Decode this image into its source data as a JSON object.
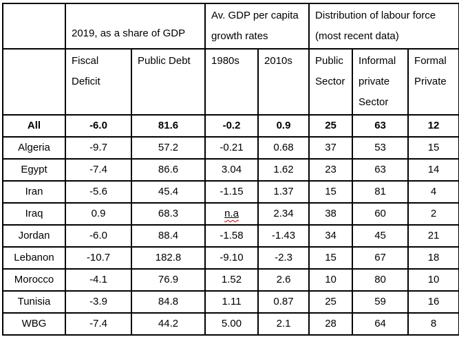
{
  "colors": {
    "background": "#ffffff",
    "border": "#000000",
    "text": "#000000",
    "squiggle": "#cc0000"
  },
  "table": {
    "corner_label": "",
    "col_groups": [
      {
        "label": "2019, as a share of GDP",
        "span": 2
      },
      {
        "label": "Av. GDP per capita\ngrowth rates",
        "span": 2
      },
      {
        "label": "Distribution of labour force\n(most recent data)",
        "span": 3
      }
    ],
    "columns": [
      {
        "label": "Fiscal\nDeficit"
      },
      {
        "label": "Public Debt"
      },
      {
        "label": "1980s"
      },
      {
        "label": "2010s"
      },
      {
        "label": "Public\nSector"
      },
      {
        "label": "Informal\nprivate\nSector"
      },
      {
        "label": "Formal\nPrivate"
      }
    ],
    "rows": [
      {
        "label": "All",
        "bold": true,
        "values": [
          "-6.0",
          "81.6",
          "-0.2",
          "0.9",
          "25",
          "63",
          "12"
        ]
      },
      {
        "label": "Algeria",
        "bold": false,
        "values": [
          "-9.7",
          "57.2",
          "-0.21",
          "0.68",
          "37",
          "53",
          "15"
        ]
      },
      {
        "label": "Egypt",
        "bold": false,
        "values": [
          "-7.4",
          "86.6",
          "3.04",
          "1.62",
          "23",
          "63",
          "14"
        ]
      },
      {
        "label": "Iran",
        "bold": false,
        "values": [
          "-5.6",
          "45.4",
          "-1.15",
          "1.37",
          "15",
          "81",
          "4"
        ]
      },
      {
        "label": "Iraq",
        "bold": false,
        "values": [
          "0.9",
          "68.3",
          "n.a",
          "2.34",
          "38",
          "60",
          "2"
        ],
        "underlined_value_index": 2,
        "squiggle_value_index": 2
      },
      {
        "label": "Jordan",
        "bold": false,
        "values": [
          "-6.0",
          "88.4",
          "-1.58",
          "-1.43",
          "34",
          "45",
          "21"
        ]
      },
      {
        "label": "Lebanon",
        "bold": false,
        "values": [
          "-10.7",
          "182.8",
          "-9.10",
          "-2.3",
          "15",
          "67",
          "18"
        ]
      },
      {
        "label": "Morocco",
        "bold": false,
        "values": [
          "-4.1",
          "76.9",
          "1.52",
          "2.6",
          "10",
          "80",
          "10"
        ]
      },
      {
        "label": "Tunisia",
        "bold": false,
        "values": [
          "-3.9",
          "84.8",
          "1.11",
          "0.87",
          "25",
          "59",
          "16"
        ]
      },
      {
        "label": "WBG",
        "bold": false,
        "values": [
          "-7.4",
          "44.2",
          "5.00",
          "2.1",
          "28",
          "64",
          "8"
        ]
      }
    ]
  }
}
